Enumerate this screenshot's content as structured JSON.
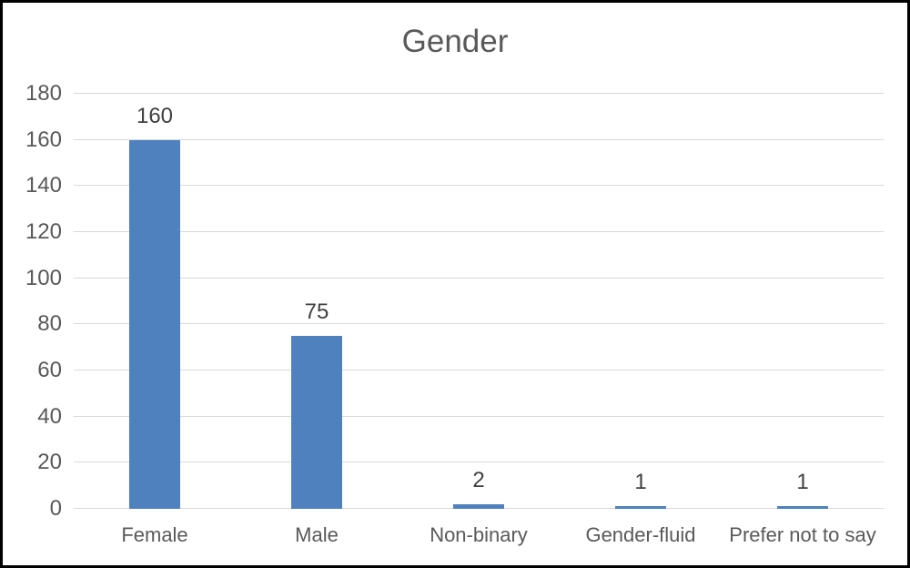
{
  "frame": {
    "border_color": "#000000",
    "background": "#ffffff"
  },
  "chart_data": {
    "type": "bar",
    "title": "Gender",
    "categories": [
      "Female",
      "Male",
      "Non-binary",
      "Gender-fluid",
      "Prefer not to say"
    ],
    "values": [
      160,
      75,
      2,
      1,
      1
    ],
    "data_labels": [
      "160",
      "75",
      "2",
      "1",
      "1"
    ],
    "xlabel": "",
    "ylabel": "",
    "ylim": [
      0,
      180
    ],
    "yticks": [
      0,
      20,
      40,
      60,
      80,
      100,
      120,
      140,
      160,
      180
    ],
    "grid": "horizontal-major",
    "legend_position": "none",
    "colors": {
      "bar": "#4e81bd",
      "gridline": "#d9d9d9",
      "title_text": "#595959",
      "axis_text": "#595959",
      "data_label_text": "#404040"
    }
  }
}
